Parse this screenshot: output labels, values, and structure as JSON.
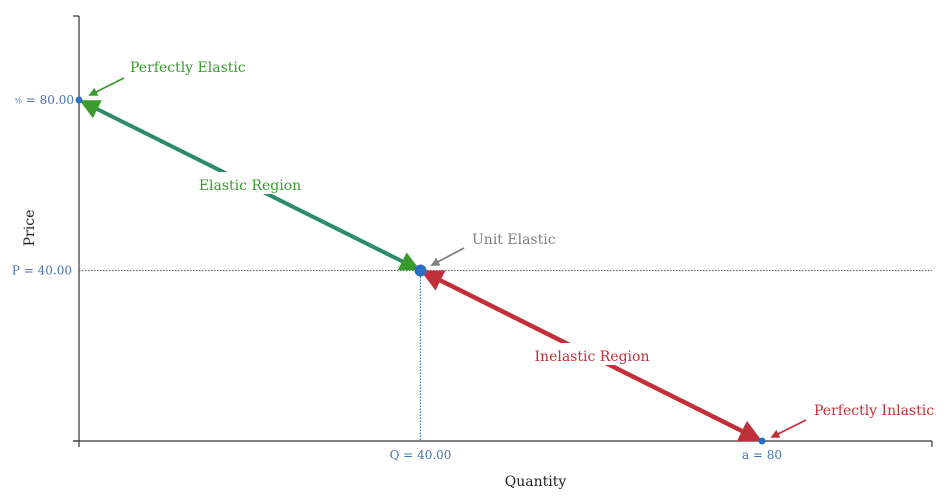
{
  "colors": {
    "axis": "#333333",
    "tick_text": "#4a72b0",
    "elastic": "#2e8b6a",
    "elastic_text": "#3a9a2e",
    "inelastic": "#c0303a",
    "inelastic_line": "#6b3f6e",
    "unit": "#808080",
    "point": "#2a6fc0",
    "guide_h": "#666666",
    "guide_v": "#3a6db8"
  },
  "chart_data": {
    "type": "line",
    "title": "",
    "xlabel": "Quantity",
    "ylabel": "Price",
    "xlim": [
      0,
      100
    ],
    "ylim": [
      0,
      100
    ],
    "demand_curve": {
      "x": [
        0,
        40,
        80
      ],
      "y": [
        80,
        40,
        0
      ]
    },
    "points": [
      {
        "name": "choke-price",
        "x": 0,
        "y": 80
      },
      {
        "name": "unit-elastic",
        "x": 40,
        "y": 40
      },
      {
        "name": "max-quantity",
        "x": 80,
        "y": 0
      }
    ],
    "tick_labels": {
      "y_top": "a/b = 80.00",
      "y_mid": "P = 40.00",
      "x_mid": "Q = 40.00",
      "x_right": "a = 80"
    },
    "annotations": {
      "perfectly_elastic": "Perfectly Elastic",
      "elastic_region": "Elastic Region",
      "unit_elastic": "Unit Elastic",
      "inelastic_region": "Inelastic Region",
      "perfectly_inelastic": "Perfectly Inlastic"
    }
  }
}
